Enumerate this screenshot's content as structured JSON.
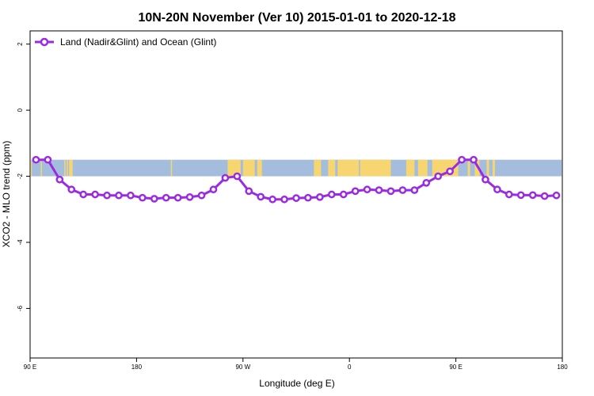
{
  "chart_data": {
    "type": "line",
    "title": "10N-20N November (Ver 10)   2015-01-01 to 2020-12-18",
    "xlabel": "Longitude (deg E)",
    "ylabel": "XCO2 - MLO trend (ppm)",
    "x_tick_labels": [
      "90 E",
      "180",
      "90 W",
      "0",
      "90 E",
      "180"
    ],
    "y_tick_labels": [
      "2",
      "0",
      "-2",
      "-4",
      "-6"
    ],
    "y_ticks": [
      2,
      0,
      -2,
      -4,
      -6
    ],
    "x_ticks": [
      90,
      180,
      270,
      360,
      450,
      540
    ],
    "xlim": [
      90,
      540
    ],
    "ylim": [
      -7.5,
      2.4
    ],
    "grid": false,
    "legend_position": "top-left",
    "background_map_band": {
      "ymin": -2.0,
      "ymax": -1.5,
      "ocean_color": "#a4bddd",
      "land_color": "#f7d571"
    },
    "series": [
      {
        "name": "Land (Nadir&Glint) and Ocean (Glint)",
        "color": "#9a2be2",
        "x": [
          95,
          105,
          115,
          125,
          135,
          145,
          155,
          165,
          175,
          185,
          195,
          205,
          215,
          225,
          235,
          245,
          255,
          265,
          275,
          285,
          295,
          305,
          315,
          325,
          335,
          345,
          355,
          365,
          375,
          385,
          395,
          405,
          415,
          425,
          435,
          445,
          455,
          465,
          475,
          485,
          495,
          505,
          515,
          525,
          535
        ],
        "values": [
          -1.5,
          -1.5,
          -2.1,
          -2.4,
          -2.55,
          -2.55,
          -2.58,
          -2.58,
          -2.58,
          -2.65,
          -2.68,
          -2.65,
          -2.65,
          -2.63,
          -2.58,
          -2.4,
          -2.05,
          -2.0,
          -2.45,
          -2.62,
          -2.7,
          -2.7,
          -2.66,
          -2.65,
          -2.63,
          -2.55,
          -2.55,
          -2.45,
          -2.4,
          -2.42,
          -2.45,
          -2.42,
          -2.42,
          -2.2,
          -2.0,
          -1.85,
          -1.5,
          -1.5,
          -2.1,
          -2.4,
          -2.55,
          -2.57,
          -2.57,
          -2.6,
          -2.58
        ]
      }
    ]
  },
  "map_land_segments": [
    {
      "from": 90,
      "to": 91.5
    },
    {
      "from": 99,
      "to": 100
    },
    {
      "from": 119,
      "to": 120
    },
    {
      "from": 121,
      "to": 122
    },
    {
      "from": 123,
      "to": 126
    },
    {
      "from": 209,
      "to": 210
    },
    {
      "from": 257,
      "to": 268
    },
    {
      "from": 270,
      "to": 280
    },
    {
      "from": 282,
      "to": 286
    },
    {
      "from": 330,
      "to": 336
    },
    {
      "from": 342,
      "to": 348
    },
    {
      "from": 350,
      "to": 368
    },
    {
      "from": 369,
      "to": 395
    },
    {
      "from": 408,
      "to": 415
    },
    {
      "from": 418,
      "to": 426
    },
    {
      "from": 430,
      "to": 452
    },
    {
      "from": 460,
      "to": 462
    },
    {
      "from": 466,
      "to": 470
    },
    {
      "from": 476,
      "to": 478
    },
    {
      "from": 481,
      "to": 483
    }
  ]
}
